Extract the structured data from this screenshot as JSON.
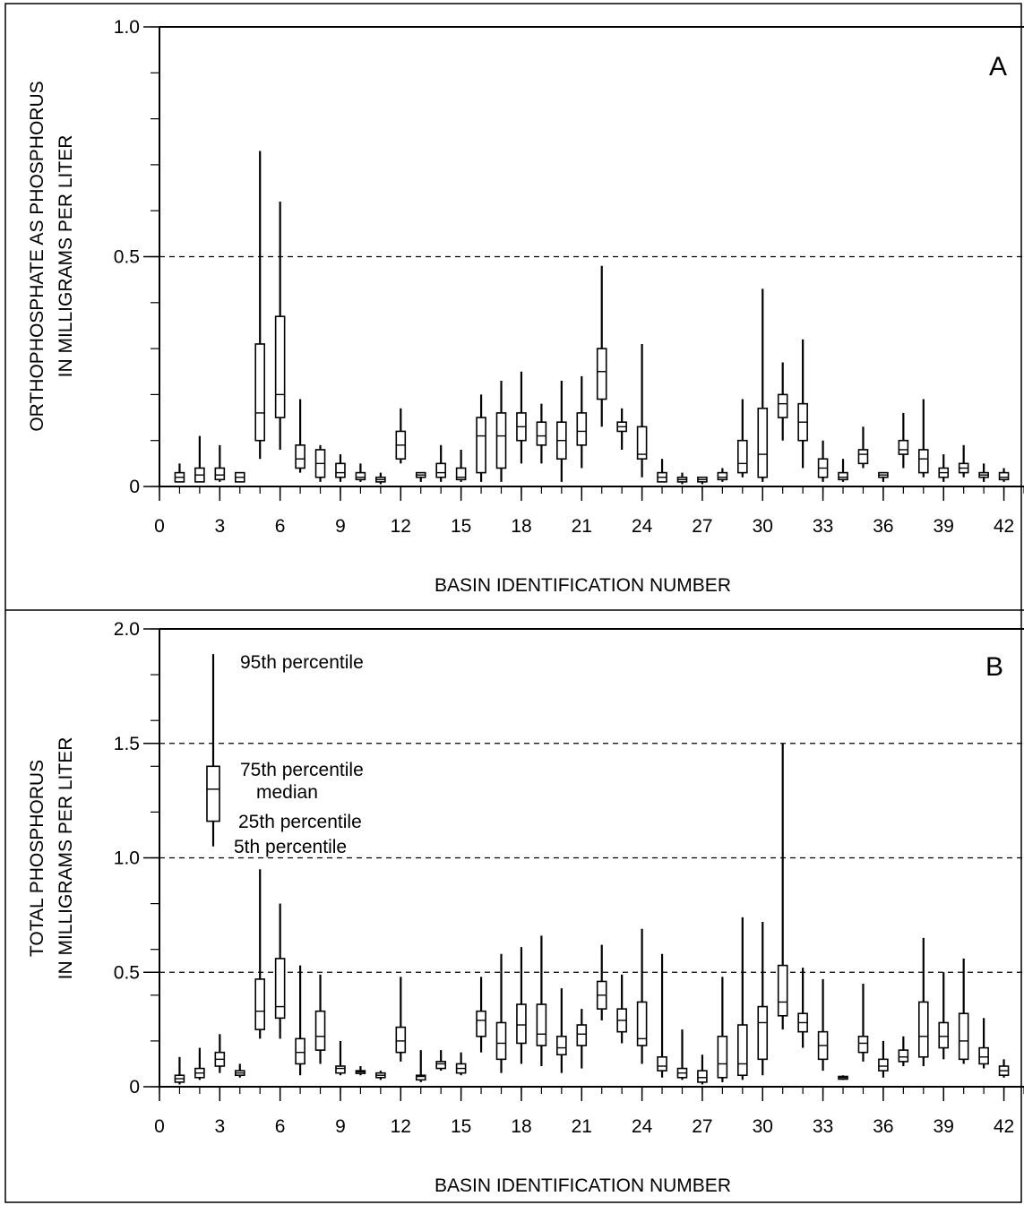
{
  "chart_data": [
    {
      "type": "box",
      "panel_label": "A",
      "ylabel": [
        "ORTHOPHOSPHATE AS PHOSPHORUS",
        "IN MILLIGRAMS PER LITER"
      ],
      "xlabel": "BASIN IDENTIFICATION NUMBER",
      "ylim": [
        0,
        1.0
      ],
      "xlim": [
        0,
        43
      ],
      "yticks": [
        0,
        0.5,
        1.0
      ],
      "ytick_labels": [
        "0",
        "0.5",
        "1.0"
      ],
      "xticks": [
        0,
        3,
        6,
        9,
        12,
        15,
        18,
        21,
        24,
        27,
        30,
        33,
        36,
        39,
        42
      ],
      "xtick_labels": [
        "0",
        "3",
        "6",
        "9",
        "12",
        "15",
        "18",
        "21",
        "24",
        "27",
        "30",
        "33",
        "36",
        "39",
        "42"
      ],
      "reference_lines": [
        0.5
      ],
      "boxes": [
        {
          "x": 1,
          "p5": 0.01,
          "p25": 0.01,
          "median": 0.02,
          "p75": 0.03,
          "p95": 0.05
        },
        {
          "x": 2,
          "p5": 0.01,
          "p25": 0.01,
          "median": 0.025,
          "p75": 0.04,
          "p95": 0.11
        },
        {
          "x": 3,
          "p5": 0.01,
          "p25": 0.015,
          "median": 0.025,
          "p75": 0.04,
          "p95": 0.09
        },
        {
          "x": 4,
          "p5": 0.01,
          "p25": 0.01,
          "median": 0.02,
          "p75": 0.03,
          "p95": 0.03
        },
        {
          "x": 5,
          "p5": 0.06,
          "p25": 0.1,
          "median": 0.16,
          "p75": 0.31,
          "p95": 0.73
        },
        {
          "x": 6,
          "p5": 0.08,
          "p25": 0.15,
          "median": 0.2,
          "p75": 0.37,
          "p95": 0.62
        },
        {
          "x": 7,
          "p5": 0.03,
          "p25": 0.04,
          "median": 0.06,
          "p75": 0.09,
          "p95": 0.19
        },
        {
          "x": 8,
          "p5": 0.01,
          "p25": 0.02,
          "median": 0.05,
          "p75": 0.08,
          "p95": 0.09
        },
        {
          "x": 9,
          "p5": 0.01,
          "p25": 0.02,
          "median": 0.03,
          "p75": 0.05,
          "p95": 0.07
        },
        {
          "x": 10,
          "p5": 0.01,
          "p25": 0.015,
          "median": 0.02,
          "p75": 0.03,
          "p95": 0.05
        },
        {
          "x": 11,
          "p5": 0.005,
          "p25": 0.01,
          "median": 0.015,
          "p75": 0.02,
          "p95": 0.03
        },
        {
          "x": 12,
          "p5": 0.05,
          "p25": 0.06,
          "median": 0.09,
          "p75": 0.12,
          "p95": 0.17
        },
        {
          "x": 13,
          "p5": 0.01,
          "p25": 0.02,
          "median": 0.025,
          "p75": 0.03,
          "p95": 0.03
        },
        {
          "x": 14,
          "p5": 0.01,
          "p25": 0.02,
          "median": 0.03,
          "p75": 0.05,
          "p95": 0.09
        },
        {
          "x": 15,
          "p5": 0.01,
          "p25": 0.015,
          "median": 0.02,
          "p75": 0.04,
          "p95": 0.08
        },
        {
          "x": 16,
          "p5": 0.01,
          "p25": 0.03,
          "median": 0.11,
          "p75": 0.15,
          "p95": 0.2
        },
        {
          "x": 17,
          "p5": 0.01,
          "p25": 0.04,
          "median": 0.11,
          "p75": 0.16,
          "p95": 0.23
        },
        {
          "x": 18,
          "p5": 0.05,
          "p25": 0.1,
          "median": 0.13,
          "p75": 0.16,
          "p95": 0.25
        },
        {
          "x": 19,
          "p5": 0.05,
          "p25": 0.09,
          "median": 0.11,
          "p75": 0.14,
          "p95": 0.18
        },
        {
          "x": 20,
          "p5": 0.01,
          "p25": 0.06,
          "median": 0.1,
          "p75": 0.14,
          "p95": 0.23
        },
        {
          "x": 21,
          "p5": 0.04,
          "p25": 0.09,
          "median": 0.12,
          "p75": 0.16,
          "p95": 0.24
        },
        {
          "x": 22,
          "p5": 0.13,
          "p25": 0.19,
          "median": 0.25,
          "p75": 0.3,
          "p95": 0.48
        },
        {
          "x": 23,
          "p5": 0.08,
          "p25": 0.12,
          "median": 0.13,
          "p75": 0.14,
          "p95": 0.17
        },
        {
          "x": 24,
          "p5": 0.02,
          "p25": 0.06,
          "median": 0.07,
          "p75": 0.13,
          "p95": 0.31
        },
        {
          "x": 25,
          "p5": 0.01,
          "p25": 0.01,
          "median": 0.02,
          "p75": 0.03,
          "p95": 0.06
        },
        {
          "x": 26,
          "p5": 0.005,
          "p25": 0.01,
          "median": 0.015,
          "p75": 0.02,
          "p95": 0.03
        },
        {
          "x": 27,
          "p5": 0.005,
          "p25": 0.01,
          "median": 0.015,
          "p75": 0.02,
          "p95": 0.02
        },
        {
          "x": 28,
          "p5": 0.01,
          "p25": 0.015,
          "median": 0.02,
          "p75": 0.03,
          "p95": 0.04
        },
        {
          "x": 29,
          "p5": 0.02,
          "p25": 0.03,
          "median": 0.05,
          "p75": 0.1,
          "p95": 0.19
        },
        {
          "x": 30,
          "p5": 0.01,
          "p25": 0.02,
          "median": 0.07,
          "p75": 0.17,
          "p95": 0.43
        },
        {
          "x": 31,
          "p5": 0.1,
          "p25": 0.15,
          "median": 0.18,
          "p75": 0.2,
          "p95": 0.27
        },
        {
          "x": 32,
          "p5": 0.04,
          "p25": 0.1,
          "median": 0.14,
          "p75": 0.18,
          "p95": 0.32
        },
        {
          "x": 33,
          "p5": 0.01,
          "p25": 0.02,
          "median": 0.04,
          "p75": 0.06,
          "p95": 0.1
        },
        {
          "x": 34,
          "p5": 0.01,
          "p25": 0.015,
          "median": 0.02,
          "p75": 0.03,
          "p95": 0.06
        },
        {
          "x": 35,
          "p5": 0.04,
          "p25": 0.05,
          "median": 0.07,
          "p75": 0.08,
          "p95": 0.13
        },
        {
          "x": 36,
          "p5": 0.01,
          "p25": 0.02,
          "median": 0.025,
          "p75": 0.03,
          "p95": 0.03
        },
        {
          "x": 37,
          "p5": 0.04,
          "p25": 0.07,
          "median": 0.08,
          "p75": 0.1,
          "p95": 0.16
        },
        {
          "x": 38,
          "p5": 0.02,
          "p25": 0.03,
          "median": 0.06,
          "p75": 0.08,
          "p95": 0.19
        },
        {
          "x": 39,
          "p5": 0.01,
          "p25": 0.02,
          "median": 0.03,
          "p75": 0.04,
          "p95": 0.07
        },
        {
          "x": 40,
          "p5": 0.02,
          "p25": 0.03,
          "median": 0.04,
          "p75": 0.05,
          "p95": 0.09
        },
        {
          "x": 41,
          "p5": 0.01,
          "p25": 0.02,
          "median": 0.025,
          "p75": 0.03,
          "p95": 0.05
        },
        {
          "x": 42,
          "p5": 0.01,
          "p25": 0.015,
          "median": 0.02,
          "p75": 0.03,
          "p95": 0.04
        }
      ]
    },
    {
      "type": "box",
      "panel_label": "B",
      "ylabel": [
        "TOTAL PHOSPHORUS",
        "IN MILLIGRAMS PER LITER"
      ],
      "xlabel": "BASIN IDENTIFICATION NUMBER",
      "ylim": [
        0,
        2.0
      ],
      "xlim": [
        0,
        43
      ],
      "yticks": [
        0,
        0.5,
        1.0,
        1.5,
        2.0
      ],
      "ytick_labels": [
        "0",
        "0.5",
        "1.0",
        "1.5",
        "2.0"
      ],
      "xticks": [
        0,
        3,
        6,
        9,
        12,
        15,
        18,
        21,
        24,
        27,
        30,
        33,
        36,
        39,
        42
      ],
      "xtick_labels": [
        "0",
        "3",
        "6",
        "9",
        "12",
        "15",
        "18",
        "21",
        "24",
        "27",
        "30",
        "33",
        "36",
        "39",
        "42"
      ],
      "reference_lines": [
        0.5,
        1.0,
        1.5
      ],
      "legend": {
        "box": {
          "p5": 1.05,
          "p25": 1.16,
          "median": 1.3,
          "p75": 1.4,
          "p95": 1.89
        },
        "labels": {
          "p95": "95th percentile",
          "p75": "75th percentile",
          "median": "median",
          "p25": "25th percentile",
          "p5": "5th percentile"
        }
      },
      "boxes": [
        {
          "x": 1,
          "p5": 0.01,
          "p25": 0.02,
          "median": 0.035,
          "p75": 0.05,
          "p95": 0.13
        },
        {
          "x": 2,
          "p5": 0.03,
          "p25": 0.04,
          "median": 0.06,
          "p75": 0.08,
          "p95": 0.17
        },
        {
          "x": 3,
          "p5": 0.06,
          "p25": 0.09,
          "median": 0.12,
          "p75": 0.15,
          "p95": 0.23
        },
        {
          "x": 4,
          "p5": 0.04,
          "p25": 0.05,
          "median": 0.06,
          "p75": 0.07,
          "p95": 0.1
        },
        {
          "x": 5,
          "p5": 0.21,
          "p25": 0.25,
          "median": 0.33,
          "p75": 0.47,
          "p95": 0.95
        },
        {
          "x": 6,
          "p5": 0.21,
          "p25": 0.3,
          "median": 0.35,
          "p75": 0.56,
          "p95": 0.8
        },
        {
          "x": 7,
          "p5": 0.05,
          "p25": 0.1,
          "median": 0.15,
          "p75": 0.21,
          "p95": 0.53
        },
        {
          "x": 8,
          "p5": 0.1,
          "p25": 0.16,
          "median": 0.22,
          "p75": 0.33,
          "p95": 0.49
        },
        {
          "x": 9,
          "p5": 0.05,
          "p25": 0.06,
          "median": 0.08,
          "p75": 0.09,
          "p95": 0.2
        },
        {
          "x": 10,
          "p5": 0.05,
          "p25": 0.06,
          "median": 0.065,
          "p75": 0.07,
          "p95": 0.09
        },
        {
          "x": 11,
          "p5": 0.03,
          "p25": 0.04,
          "median": 0.05,
          "p75": 0.06,
          "p95": 0.07
        },
        {
          "x": 12,
          "p5": 0.11,
          "p25": 0.15,
          "median": 0.2,
          "p75": 0.26,
          "p95": 0.48
        },
        {
          "x": 13,
          "p5": 0.02,
          "p25": 0.03,
          "median": 0.045,
          "p75": 0.05,
          "p95": 0.16
        },
        {
          "x": 14,
          "p5": 0.07,
          "p25": 0.08,
          "median": 0.1,
          "p75": 0.11,
          "p95": 0.16
        },
        {
          "x": 15,
          "p5": 0.05,
          "p25": 0.06,
          "median": 0.08,
          "p75": 0.1,
          "p95": 0.15
        },
        {
          "x": 16,
          "p5": 0.15,
          "p25": 0.22,
          "median": 0.29,
          "p75": 0.33,
          "p95": 0.48
        },
        {
          "x": 17,
          "p5": 0.06,
          "p25": 0.12,
          "median": 0.19,
          "p75": 0.28,
          "p95": 0.58
        },
        {
          "x": 18,
          "p5": 0.1,
          "p25": 0.19,
          "median": 0.27,
          "p75": 0.36,
          "p95": 0.61
        },
        {
          "x": 19,
          "p5": 0.09,
          "p25": 0.18,
          "median": 0.23,
          "p75": 0.36,
          "p95": 0.66
        },
        {
          "x": 20,
          "p5": 0.06,
          "p25": 0.14,
          "median": 0.17,
          "p75": 0.22,
          "p95": 0.43
        },
        {
          "x": 21,
          "p5": 0.08,
          "p25": 0.18,
          "median": 0.23,
          "p75": 0.27,
          "p95": 0.34
        },
        {
          "x": 22,
          "p5": 0.29,
          "p25": 0.34,
          "median": 0.4,
          "p75": 0.46,
          "p95": 0.62
        },
        {
          "x": 23,
          "p5": 0.19,
          "p25": 0.24,
          "median": 0.29,
          "p75": 0.34,
          "p95": 0.49
        },
        {
          "x": 24,
          "p5": 0.1,
          "p25": 0.18,
          "median": 0.21,
          "p75": 0.37,
          "p95": 0.69
        },
        {
          "x": 25,
          "p5": 0.04,
          "p25": 0.07,
          "median": 0.09,
          "p75": 0.13,
          "p95": 0.58
        },
        {
          "x": 26,
          "p5": 0.03,
          "p25": 0.04,
          "median": 0.06,
          "p75": 0.08,
          "p95": 0.25
        },
        {
          "x": 27,
          "p5": 0.01,
          "p25": 0.02,
          "median": 0.04,
          "p75": 0.07,
          "p95": 0.14
        },
        {
          "x": 28,
          "p5": 0.02,
          "p25": 0.04,
          "median": 0.1,
          "p75": 0.22,
          "p95": 0.48
        },
        {
          "x": 29,
          "p5": 0.03,
          "p25": 0.05,
          "median": 0.1,
          "p75": 0.27,
          "p95": 0.74
        },
        {
          "x": 30,
          "p5": 0.05,
          "p25": 0.12,
          "median": 0.28,
          "p75": 0.35,
          "p95": 0.72
        },
        {
          "x": 31,
          "p5": 0.25,
          "p25": 0.31,
          "median": 0.37,
          "p75": 0.53,
          "p95": 1.5
        },
        {
          "x": 32,
          "p5": 0.17,
          "p25": 0.24,
          "median": 0.28,
          "p75": 0.32,
          "p95": 0.52
        },
        {
          "x": 33,
          "p5": 0.07,
          "p25": 0.12,
          "median": 0.18,
          "p75": 0.24,
          "p95": 0.47
        },
        {
          "x": 34,
          "p5": 0.03,
          "p25": 0.035,
          "median": 0.04,
          "p75": 0.045,
          "p95": 0.05
        },
        {
          "x": 35,
          "p5": 0.11,
          "p25": 0.15,
          "median": 0.19,
          "p75": 0.22,
          "p95": 0.45
        },
        {
          "x": 36,
          "p5": 0.04,
          "p25": 0.07,
          "median": 0.09,
          "p75": 0.12,
          "p95": 0.2
        },
        {
          "x": 37,
          "p5": 0.09,
          "p25": 0.11,
          "median": 0.13,
          "p75": 0.16,
          "p95": 0.22
        },
        {
          "x": 38,
          "p5": 0.09,
          "p25": 0.13,
          "median": 0.22,
          "p75": 0.37,
          "p95": 0.65
        },
        {
          "x": 39,
          "p5": 0.12,
          "p25": 0.17,
          "median": 0.22,
          "p75": 0.28,
          "p95": 0.5
        },
        {
          "x": 40,
          "p5": 0.1,
          "p25": 0.12,
          "median": 0.2,
          "p75": 0.32,
          "p95": 0.56
        },
        {
          "x": 41,
          "p5": 0.08,
          "p25": 0.1,
          "median": 0.13,
          "p75": 0.17,
          "p95": 0.3
        },
        {
          "x": 42,
          "p5": 0.04,
          "p25": 0.05,
          "median": 0.07,
          "p75": 0.09,
          "p95": 0.12
        }
      ]
    }
  ]
}
